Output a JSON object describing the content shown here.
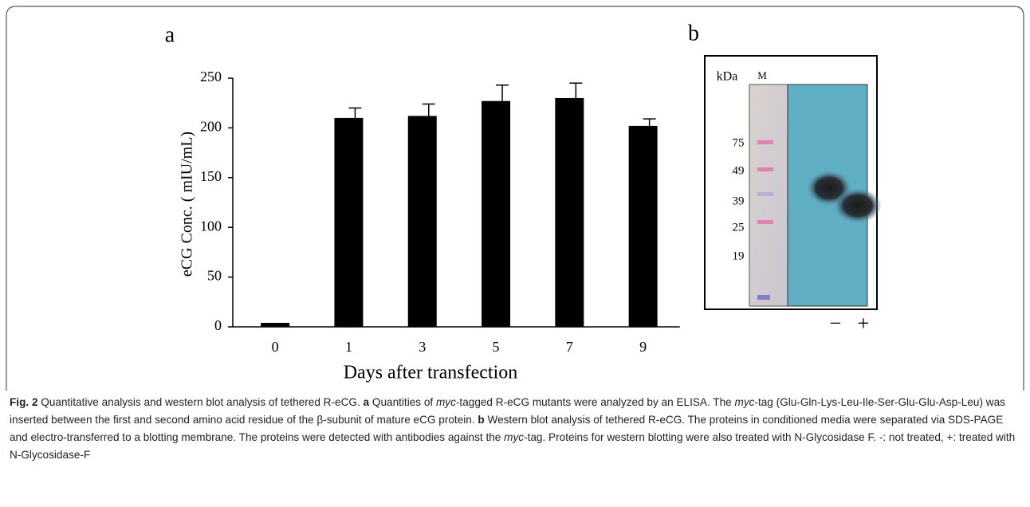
{
  "chart_data": {
    "type": "bar",
    "panel_label": "a",
    "x_label": "Days after transfection",
    "y_label": "eCG Conc. ( mIU/mL)",
    "categories": [
      "0",
      "1",
      "3",
      "5",
      "7",
      "9"
    ],
    "values": [
      4,
      210,
      212,
      227,
      230,
      202
    ],
    "errors": [
      null,
      10,
      12,
      16,
      15,
      7
    ],
    "color": "#000000",
    "ylim": [
      0,
      250
    ],
    "yticks": [
      0,
      50,
      100,
      150,
      200,
      250
    ],
    "grid": false
  },
  "blot": {
    "panel_label": "b",
    "unit": "kDa",
    "marker_lane": "M",
    "markers": [
      "75",
      "49",
      "39",
      "25",
      "19"
    ],
    "lanes": [
      "−",
      "+"
    ]
  },
  "caption": {
    "parts": [
      "Fig. 2",
      " Quantitative analysis and western blot analysis of tethered R-eCG. ",
      "a",
      " Quantities of ",
      "myc",
      "-tagged R-eCG mutants were analyzed by an ELISA. The ",
      "myc",
      "-tag (Glu-Gln-Lys-Leu-Ile-Ser-Glu-Glu-Asp-Leu) was inserted between the first and second amino acid residue of the β-subunit of mature eCG protein. ",
      "b",
      " Western blot analysis of tethered R-eCG. The proteins in conditioned media were separated via SDS-PAGE and electro-transferred to a blotting membrane. The proteins were detected with antibodies against the ",
      "myc",
      "-tag. Proteins for western blotting were also treated with N-Glycosidase F. -: not treated, +: treated with N-Glycosidase-F"
    ]
  }
}
